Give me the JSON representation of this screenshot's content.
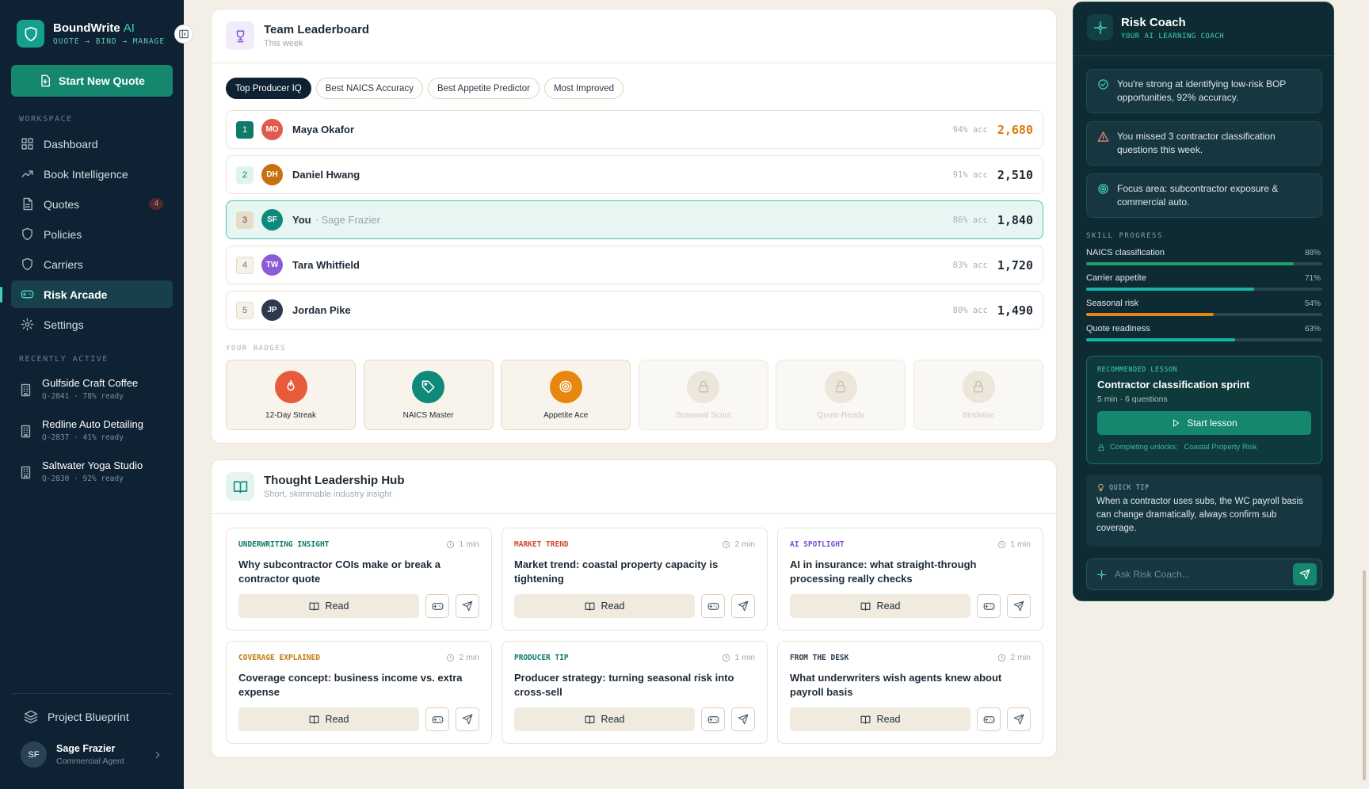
{
  "sidebar": {
    "brand": "BoundWrite",
    "brand_suffix": "AI",
    "tagline": "QUOTE → BIND → MANAGE",
    "new_quote": "Start New Quote",
    "workspace_label": "WORKSPACE",
    "nav": [
      {
        "label": "Dashboard"
      },
      {
        "label": "Book Intelligence"
      },
      {
        "label": "Quotes",
        "badge": "4"
      },
      {
        "label": "Policies"
      },
      {
        "label": "Carriers"
      },
      {
        "label": "Risk Arcade"
      },
      {
        "label": "Settings"
      }
    ],
    "recent_label": "RECENTLY ACTIVE",
    "recent": [
      {
        "name": "Gulfside Craft Coffee",
        "meta": "Q-2841 · 78% ready"
      },
      {
        "name": "Redline Auto Detailing",
        "meta": "Q-2837 · 41% ready"
      },
      {
        "name": "Saltwater Yoga Studio",
        "meta": "Q-2830 · 92% ready"
      }
    ],
    "blueprint": "Project Blueprint",
    "user": {
      "initials": "SF",
      "name": "Sage Frazier",
      "role": "Commercial Agent"
    }
  },
  "leaderboard": {
    "title": "Team Leaderboard",
    "subtitle": "This week",
    "tabs": [
      "Top Producer IQ",
      "Best NAICS Accuracy",
      "Best Appetite Predictor",
      "Most Improved"
    ],
    "rows": [
      {
        "rank": "1",
        "initials": "MO",
        "name": "Maya Okafor",
        "acc": "94% acc",
        "score": "2,680"
      },
      {
        "rank": "2",
        "initials": "DH",
        "name": "Daniel Hwang",
        "acc": "91% acc",
        "score": "2,510"
      },
      {
        "rank": "3",
        "initials": "SF",
        "name": "You",
        "detail": "· Sage Frazier",
        "acc": "86% acc",
        "score": "1,840"
      },
      {
        "rank": "4",
        "initials": "TW",
        "name": "Tara Whitfield",
        "acc": "83% acc",
        "score": "1,720"
      },
      {
        "rank": "5",
        "initials": "JP",
        "name": "Jordan Pike",
        "acc": "80% acc",
        "score": "1,490"
      }
    ],
    "badges_label": "YOUR BADGES",
    "badges": [
      "12-Day Streak",
      "NAICS Master",
      "Appetite Ace",
      "Seasonal Scout",
      "Quote-Ready",
      "Bindwise"
    ]
  },
  "hub": {
    "title": "Thought Leadership Hub",
    "subtitle": "Short, skimmable industry insight",
    "read": "Read",
    "cards": [
      {
        "tag": "UNDERWRITING INSIGHT",
        "time": "1 min",
        "title": "Why subcontractor COIs make or break a contractor quote"
      },
      {
        "tag": "MARKET TREND",
        "time": "2 min",
        "title": "Market trend: coastal property capacity is tightening"
      },
      {
        "tag": "AI SPOTLIGHT",
        "time": "1 min",
        "title": "AI in insurance: what straight-through processing really checks"
      },
      {
        "tag": "COVERAGE EXPLAINED",
        "time": "2 min",
        "title": "Coverage concept: business income vs. extra expense"
      },
      {
        "tag": "PRODUCER TIP",
        "time": "1 min",
        "title": "Producer strategy: turning seasonal risk into cross-sell"
      },
      {
        "tag": "FROM THE DESK",
        "time": "2 min",
        "title": "What underwriters wish agents knew about payroll basis"
      }
    ]
  },
  "coach": {
    "title": "Risk Coach",
    "subtitle": "YOUR AI LEARNING COACH",
    "insights": [
      "You're strong at identifying low-risk BOP opportunities, 92% accuracy.",
      "You missed 3 contractor classification questions this week.",
      "Focus area: subcontractor exposure & commercial auto."
    ],
    "skills_label": "SKILL PROGRESS",
    "skills": [
      {
        "name": "NAICS classification",
        "progress": {
          "value": 88,
          "label": "88%"
        }
      },
      {
        "name": "Carrier appetite",
        "progress": {
          "value": 71,
          "label": "71%"
        }
      },
      {
        "name": "Seasonal risk",
        "progress": {
          "value": 54,
          "label": "54%"
        }
      },
      {
        "name": "Quote readiness",
        "progress": {
          "value": 63,
          "label": "63%"
        }
      }
    ],
    "lesson": {
      "label": "RECOMMENDED LESSON",
      "title": "Contractor classification sprint",
      "meta": "5 min · 6 questions",
      "button": "Start lesson",
      "unlocks_label": "Completing unlocks:",
      "unlocks": "Coastal Property Risk"
    },
    "tip": {
      "label": "QUICK TIP",
      "text": "When a contractor uses subs, the WC payroll basis can change dramatically, always confirm sub coverage."
    },
    "ask_placeholder": "Ask Risk Coach..."
  }
}
